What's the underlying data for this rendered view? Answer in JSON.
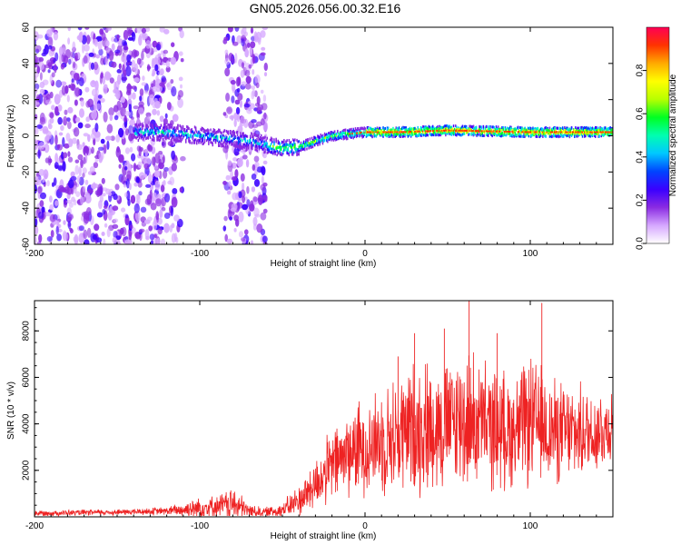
{
  "title": "GN05.2026.056.00.32.E16",
  "chart_data": [
    {
      "type": "heatmap",
      "name": "spectrogram",
      "xlabel": "Height of straight line (km)",
      "ylabel": "Frequency (Hz)",
      "xlim": [
        -200,
        150
      ],
      "ylim": [
        -60,
        60
      ],
      "xticks": [
        -200,
        -100,
        0,
        100
      ],
      "yticks": [
        -60,
        -40,
        -20,
        0,
        20,
        40,
        60
      ],
      "x_minor_step": 10,
      "y_minor_step": 5,
      "ridge": {
        "x": [
          -140,
          -120,
          -100,
          -80,
          -70,
          -60,
          -50,
          -40,
          -30,
          -20,
          -10,
          0,
          20,
          50,
          100,
          150
        ],
        "freq": [
          2,
          2,
          0,
          -2,
          -3,
          -5,
          -7,
          -6,
          -3,
          0,
          1,
          2,
          2,
          3,
          2,
          2
        ]
      },
      "noise_regions": [
        {
          "x_from": -200,
          "x_to": -120,
          "density": "high"
        },
        {
          "x_from": -120,
          "x_to": -110,
          "density": "low"
        },
        {
          "x_from": -85,
          "x_to": -60,
          "density": "medium"
        }
      ],
      "colorbar": {
        "label": "Normalized spectral amplitude",
        "ticks": [
          0.0,
          0.2,
          0.4,
          0.6,
          0.8
        ],
        "tick_labels": [
          "0.0",
          "0.2",
          "0.4",
          "0.6",
          "0.8"
        ],
        "range": [
          0,
          1
        ],
        "colormap": [
          "#ffffff",
          "#d6a8ff",
          "#8a2be2",
          "#3a00ff",
          "#0044ff",
          "#00c8ff",
          "#00ffb0",
          "#00ff22",
          "#b8ff00",
          "#ffff00",
          "#ffaa00",
          "#ff3300",
          "#ff0055"
        ]
      }
    },
    {
      "type": "line",
      "name": "snr",
      "xlabel": "Height of straight line (km)",
      "ylabel": "SNR (10 * v/v)",
      "xlim": [
        -200,
        150
      ],
      "ylim": [
        0,
        9300
      ],
      "xticks": [
        -200,
        -100,
        0,
        100
      ],
      "yticks": [
        2000,
        4000,
        6000,
        8000
      ],
      "x_minor_step": 10,
      "y_minor_step": 500,
      "line_color": "#ee2222",
      "envelope": {
        "x": [
          -200,
          -150,
          -120,
          -110,
          -100,
          -90,
          -80,
          -70,
          -60,
          -50,
          -40,
          -30,
          -20,
          -10,
          0,
          10,
          20,
          30,
          40,
          50,
          60,
          70,
          80,
          90,
          100,
          110,
          120,
          130,
          140,
          150
        ],
        "base": [
          150,
          200,
          250,
          300,
          400,
          450,
          550,
          250,
          200,
          300,
          700,
          1400,
          2200,
          2800,
          3000,
          3300,
          3500,
          3800,
          3900,
          4000,
          4200,
          4000,
          3800,
          3700,
          4100,
          3800,
          3600,
          3600,
          3700,
          3900
        ],
        "amp": [
          150,
          150,
          200,
          400,
          650,
          500,
          900,
          350,
          250,
          400,
          800,
          1300,
          1800,
          2200,
          2400,
          2600,
          3000,
          3400,
          3300,
          3200,
          3600,
          3200,
          3000,
          2800,
          3200,
          2800,
          2500,
          2300,
          2200,
          2000
        ]
      },
      "peaks": [
        {
          "x": 63,
          "y": 9300
        },
        {
          "x": 107,
          "y": 9200
        },
        {
          "x": 30,
          "y": 7900
        },
        {
          "x": 48,
          "y": 8100
        },
        {
          "x": 80,
          "y": 7900
        },
        {
          "x": 20,
          "y": 6900
        }
      ]
    }
  ]
}
